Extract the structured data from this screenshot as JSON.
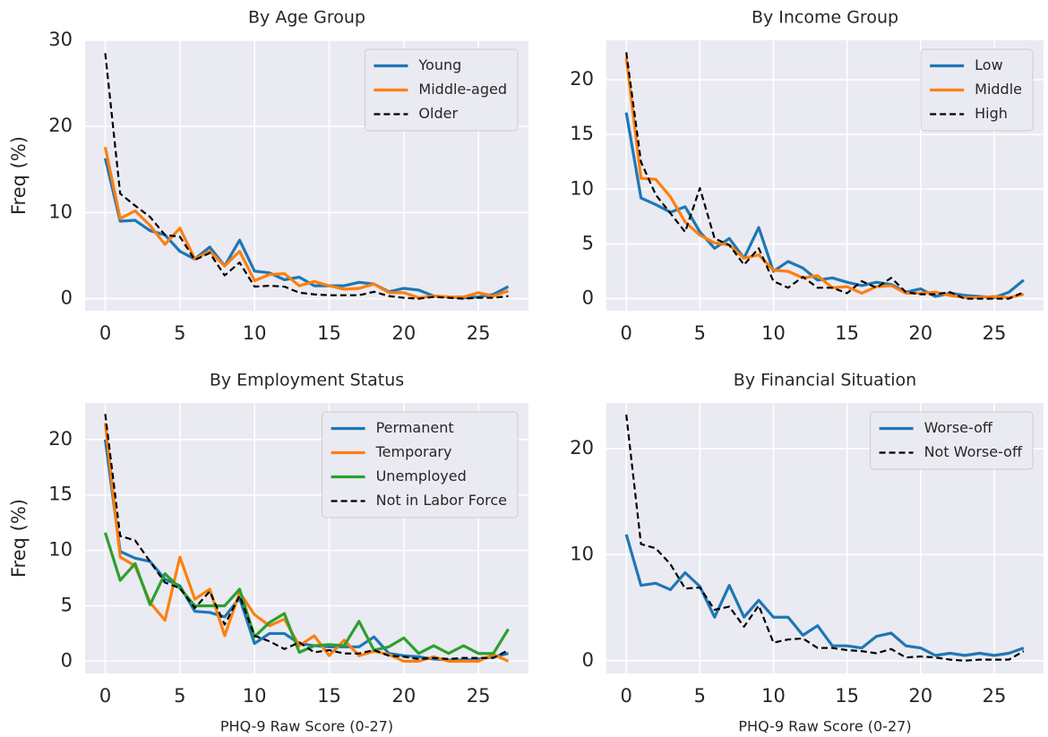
{
  "chart_data": [
    {
      "type": "line",
      "title": "By Age Group",
      "ylabel": "Freq (%)",
      "x": [
        0,
        1,
        2,
        3,
        4,
        5,
        6,
        7,
        8,
        9,
        10,
        11,
        12,
        13,
        14,
        15,
        16,
        17,
        18,
        19,
        20,
        21,
        22,
        23,
        24,
        25,
        26,
        27
      ],
      "xlim": [
        -1.35,
        28.35
      ],
      "xticks": [
        0,
        5,
        10,
        15,
        20,
        25
      ],
      "ylim": [
        -1.4,
        30
      ],
      "yticks": [
        0,
        10,
        20,
        30
      ],
      "grid": true,
      "legend": "upper right",
      "series": [
        {
          "name": "Young",
          "color": "#1f77b4",
          "linestyle": "solid",
          "values": [
            16.3,
            9,
            9.1,
            7.9,
            7.4,
            5.5,
            4.6,
            6,
            3.8,
            6.8,
            3.2,
            3,
            2.2,
            2.5,
            1.5,
            1.5,
            1.5,
            1.9,
            1.7,
            0.8,
            1.2,
            1.0,
            0.3,
            0.2,
            0.1,
            0.2,
            0.5,
            1.4
          ]
        },
        {
          "name": "Middle-aged",
          "color": "#ff7f0e",
          "linestyle": "solid",
          "values": [
            17.6,
            9.3,
            10.2,
            8.5,
            6.3,
            8.2,
            4.6,
            5.5,
            3.8,
            5.5,
            2.1,
            2.8,
            2.9,
            1.5,
            2.0,
            1.5,
            1.1,
            1.2,
            1.7,
            0.7,
            0.7,
            0.1,
            0.3,
            0.2,
            0.2,
            0.7,
            0.3,
            0.9
          ]
        },
        {
          "name": "Older",
          "color": "#000000",
          "linestyle": "dashed",
          "values": [
            28.5,
            12.2,
            10.8,
            9.5,
            7.4,
            7.2,
            4.5,
            5.3,
            2.7,
            4.2,
            1.4,
            1.5,
            1.4,
            0.7,
            0.5,
            0.4,
            0.4,
            0.4,
            0.8,
            0.3,
            0.1,
            0,
            0.2,
            0.1,
            0,
            0.1,
            0.1,
            0.3
          ]
        }
      ]
    },
    {
      "type": "line",
      "title": "By Income Group",
      "x": [
        0,
        1,
        2,
        3,
        4,
        5,
        6,
        7,
        8,
        9,
        10,
        11,
        12,
        13,
        14,
        15,
        16,
        17,
        18,
        19,
        20,
        21,
        22,
        23,
        24,
        25,
        26,
        27
      ],
      "xlim": [
        -1.35,
        28.35
      ],
      "xticks": [
        0,
        5,
        10,
        15,
        20,
        25
      ],
      "ylim": [
        -1.1,
        23.6
      ],
      "yticks": [
        0,
        5,
        10,
        15,
        20
      ],
      "grid": true,
      "legend": "upper right",
      "series": [
        {
          "name": "Low",
          "color": "#1f77b4",
          "linestyle": "solid",
          "values": [
            17,
            9.2,
            8.6,
            7.9,
            8.4,
            6.1,
            4.6,
            5.5,
            3.7,
            6.5,
            2.5,
            3.4,
            2.8,
            1.7,
            1.9,
            1.5,
            1.2,
            1.5,
            1.3,
            0.6,
            0.9,
            0.2,
            0.5,
            0.3,
            0.2,
            0.1,
            0.6,
            1.7
          ]
        },
        {
          "name": "Middle",
          "color": "#ff7f0e",
          "linestyle": "solid",
          "values": [
            22,
            11,
            10.9,
            9.3,
            7.0,
            5.8,
            5.1,
            4.9,
            3.7,
            4.0,
            2.6,
            2.5,
            1.9,
            2.1,
            1.0,
            1.1,
            0.5,
            1.1,
            1.2,
            0.5,
            0.5,
            0.6,
            0.3,
            0.1,
            0.1,
            0.2,
            0.1,
            0.4
          ]
        },
        {
          "name": "High",
          "color": "#000000",
          "linestyle": "dashed",
          "values": [
            22.5,
            12.5,
            9.5,
            7.8,
            6.1,
            10.1,
            5.5,
            4.9,
            3.1,
            4.6,
            1.6,
            1.0,
            2.0,
            1.0,
            1.0,
            0.5,
            1.6,
            1.0,
            1.9,
            0.6,
            0.4,
            0.4,
            0.6,
            0,
            0,
            0,
            0,
            0.6
          ]
        }
      ]
    },
    {
      "type": "line",
      "title": "By Employment Status",
      "ylabel": "Freq (%)",
      "xlabel": "PHQ-9 Raw Score (0-27)",
      "x": [
        0,
        1,
        2,
        3,
        4,
        5,
        6,
        7,
        8,
        9,
        10,
        11,
        12,
        13,
        14,
        15,
        16,
        17,
        18,
        19,
        20,
        21,
        22,
        23,
        24,
        25,
        26,
        27
      ],
      "xlim": [
        -1.35,
        28.35
      ],
      "xticks": [
        0,
        5,
        10,
        15,
        20,
        25
      ],
      "ylim": [
        -1.1,
        23.3
      ],
      "yticks": [
        0,
        5,
        10,
        15,
        20
      ],
      "grid": true,
      "legend": "upper right",
      "series": [
        {
          "name": "Permanent",
          "color": "#1f77b4",
          "linestyle": "solid",
          "values": [
            20,
            9.9,
            9.3,
            9.0,
            7.4,
            6.8,
            4.5,
            4.4,
            4.0,
            5.7,
            1.6,
            2.5,
            2.5,
            1.6,
            1.4,
            1.3,
            1.3,
            1.3,
            2.2,
            0.7,
            0.5,
            0.4,
            0.2,
            0.1,
            0.1,
            0.2,
            0.4,
            0.7
          ]
        },
        {
          "name": "Temporary",
          "color": "#ff7f0e",
          "linestyle": "solid",
          "values": [
            21.5,
            9.4,
            8.6,
            5.3,
            3.7,
            9.4,
            5.6,
            6.5,
            2.3,
            6.2,
            4.2,
            3.2,
            3.8,
            1.4,
            2.3,
            0.5,
            1.9,
            0.5,
            0.9,
            0.6,
            0,
            0,
            0.4,
            0,
            0,
            0,
            0.6,
            0
          ]
        },
        {
          "name": "Unemployed",
          "color": "#2ca02c",
          "linestyle": "solid",
          "values": [
            11.6,
            7.3,
            8.8,
            5.1,
            7.9,
            6.6,
            5.0,
            5.0,
            5.0,
            6.5,
            2.2,
            3.5,
            4.3,
            0.8,
            1.4,
            1.5,
            1.4,
            3.6,
            1.0,
            1.3,
            2.1,
            0.7,
            1.4,
            0.7,
            1.4,
            0.7,
            0.7,
            2.9
          ]
        },
        {
          "name": "Not in Labor Force",
          "color": "#000000",
          "linestyle": "dashed",
          "values": [
            22.3,
            11.3,
            10.9,
            9.0,
            7.1,
            6.6,
            4.8,
            6.3,
            3.3,
            5.9,
            2.3,
            1.8,
            1.1,
            1.7,
            0.8,
            1.0,
            0.7,
            0.7,
            1.0,
            0.5,
            0.4,
            0.2,
            0.3,
            0.2,
            0.3,
            0.3,
            0.3,
            1.0
          ]
        }
      ]
    },
    {
      "type": "line",
      "title": "By Financial Situation",
      "xlabel": "PHQ-9 Raw Score (0-27)",
      "x": [
        0,
        1,
        2,
        3,
        4,
        5,
        6,
        7,
        8,
        9,
        10,
        11,
        12,
        13,
        14,
        15,
        16,
        17,
        18,
        19,
        20,
        21,
        22,
        23,
        24,
        25,
        26,
        27
      ],
      "xlim": [
        -1.35,
        28.35
      ],
      "xticks": [
        0,
        5,
        10,
        15,
        20,
        25
      ],
      "ylim": [
        -1.2,
        24.3
      ],
      "yticks": [
        0,
        10,
        20
      ],
      "grid": true,
      "legend": "upper right",
      "series": [
        {
          "name": "Worse-off",
          "color": "#1f77b4",
          "linestyle": "solid",
          "values": [
            11.9,
            7.1,
            7.3,
            6.7,
            8.3,
            7.0,
            4.1,
            7.1,
            4.1,
            5.7,
            4.1,
            4.1,
            2.4,
            3.3,
            1.4,
            1.4,
            1.2,
            2.3,
            2.6,
            1.4,
            1.2,
            0.5,
            0.7,
            0.5,
            0.7,
            0.5,
            0.7,
            1.2
          ]
        },
        {
          "name": "Not Worse-off",
          "color": "#000000",
          "linestyle": "dashed",
          "values": [
            23.2,
            11.0,
            10.6,
            9.1,
            6.8,
            6.9,
            4.8,
            5.1,
            3.2,
            5.2,
            1.7,
            2.0,
            2.1,
            1.2,
            1.2,
            1.0,
            0.9,
            0.7,
            1.1,
            0.3,
            0.4,
            0.3,
            0.1,
            0,
            0.1,
            0.1,
            0.1,
            0.9
          ]
        }
      ]
    }
  ]
}
